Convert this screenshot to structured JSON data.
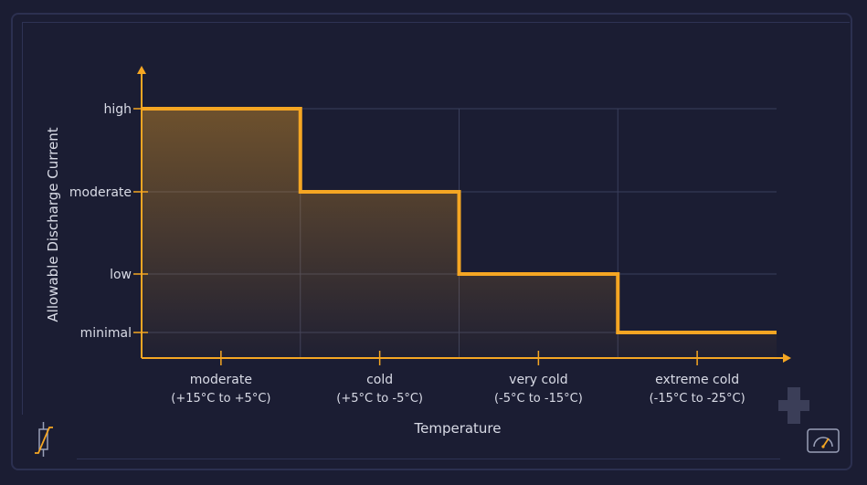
{
  "chart_data": {
    "type": "step",
    "title": "",
    "xlabel": "Temperature",
    "ylabel": "Allowable Discharge Current",
    "categories": [
      {
        "name": "moderate",
        "range": "(+15°C to +5°C)"
      },
      {
        "name": "cold",
        "range": "(+5°C to -5°C)"
      },
      {
        "name": "very cold",
        "range": "(-5°C to -15°C)"
      },
      {
        "name": "extreme cold",
        "range": "(-15°C to -25°C)"
      }
    ],
    "y_levels": [
      "minimal",
      "low",
      "moderate",
      "high"
    ],
    "series": [
      {
        "values": [
          "high",
          "moderate",
          "low",
          "minimal"
        ]
      }
    ],
    "grid": true,
    "colors": {
      "line": "#f5a623",
      "fill": "#f5a623",
      "axis": "#f5a623",
      "grid": "#3a3f5c",
      "text": "#d9dbe6"
    }
  },
  "icons": {
    "bottom_left": "resistor-thermistor-icon",
    "bottom_right": "gauge-icon"
  }
}
